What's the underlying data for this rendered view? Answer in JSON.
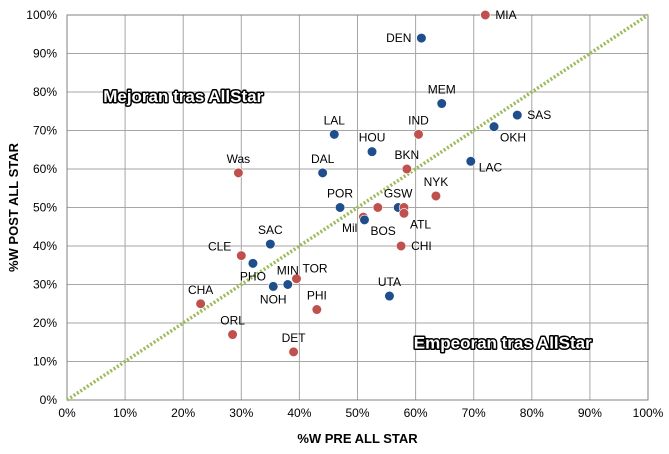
{
  "chart_data": {
    "type": "scatter",
    "xlabel": "%W PRE ALL STAR",
    "ylabel": "%W POST ALL STAR",
    "xlim": [
      0,
      100
    ],
    "ylim": [
      0,
      100
    ],
    "x_ticks": [
      "0%",
      "10%",
      "20%",
      "30%",
      "40%",
      "50%",
      "60%",
      "70%",
      "80%",
      "90%",
      "100%"
    ],
    "y_ticks": [
      "0%",
      "10%",
      "20%",
      "30%",
      "40%",
      "50%",
      "60%",
      "70%",
      "80%",
      "90%",
      "100%"
    ],
    "grid": true,
    "reference_line": {
      "style": "dotted",
      "from": [
        0,
        0
      ],
      "to": [
        100,
        100
      ],
      "color": "#9bbb59"
    },
    "annotations": [
      {
        "text": "Mejoran tras AllStar",
        "x": 20,
        "y": 79
      },
      {
        "text": "Empeoran tras AllStar",
        "x": 75,
        "y": 15
      }
    ],
    "colors": {
      "blue": "#1f4e8c",
      "red": "#c0504d"
    },
    "points": [
      {
        "label": "MIA",
        "x": 72,
        "y": 100,
        "color": "red",
        "label_side": "right"
      },
      {
        "label": "DEN",
        "x": 61,
        "y": 94,
        "color": "blue",
        "label_side": "left"
      },
      {
        "label": "MEM",
        "x": 64.5,
        "y": 77,
        "color": "blue",
        "label_side": "top"
      },
      {
        "label": "SAS",
        "x": 77.5,
        "y": 74,
        "color": "blue",
        "label_side": "right"
      },
      {
        "label": "OKH",
        "x": 73.5,
        "y": 71,
        "color": "blue",
        "label_side": "below-right"
      },
      {
        "label": "IND",
        "x": 60.5,
        "y": 69,
        "color": "red",
        "label_side": "top"
      },
      {
        "label": "LAL",
        "x": 46,
        "y": 69,
        "color": "blue",
        "label_side": "top"
      },
      {
        "label": "HOU",
        "x": 52.5,
        "y": 64.5,
        "color": "blue",
        "label_side": "top"
      },
      {
        "label": "BKN",
        "x": 58.5,
        "y": 60,
        "color": "red",
        "label_side": "top"
      },
      {
        "label": "LAC",
        "x": 69.5,
        "y": 62,
        "color": "blue",
        "label_side": "right-below"
      },
      {
        "label": "DAL",
        "x": 44,
        "y": 59,
        "color": "blue",
        "label_side": "top"
      },
      {
        "label": "Was",
        "x": 29.5,
        "y": 59,
        "color": "red",
        "label_side": "top"
      },
      {
        "label": "NYK",
        "x": 63.5,
        "y": 53,
        "color": "red",
        "label_side": "top"
      },
      {
        "label": "POR",
        "x": 47,
        "y": 50,
        "color": "blue",
        "label_side": "top"
      },
      {
        "label": "GSW",
        "x": 57,
        "y": 50,
        "color": "blue",
        "label_side": "top"
      },
      {
        "label": "",
        "x": 58,
        "y": 50,
        "color": "red",
        "label_side": "none"
      },
      {
        "label": "",
        "x": 53.5,
        "y": 50,
        "color": "red",
        "label_side": "none"
      },
      {
        "label": "Mil",
        "x": 51,
        "y": 47.5,
        "color": "red",
        "label_side": "below-left"
      },
      {
        "label": "BOS",
        "x": 51.2,
        "y": 46.8,
        "color": "blue",
        "label_side": "below-right"
      },
      {
        "label": "ATL",
        "x": 58,
        "y": 48.5,
        "color": "red",
        "label_side": "below-right"
      },
      {
        "label": "CHI",
        "x": 57.5,
        "y": 40,
        "color": "red",
        "label_side": "right"
      },
      {
        "label": "SAC",
        "x": 35,
        "y": 40.5,
        "color": "blue",
        "label_side": "top"
      },
      {
        "label": "CLE",
        "x": 30,
        "y": 37.5,
        "color": "red",
        "label_side": "top-left"
      },
      {
        "label": "PHO",
        "x": 32,
        "y": 35.5,
        "color": "blue",
        "label_side": "below"
      },
      {
        "label": "TOR",
        "x": 39.5,
        "y": 31.5,
        "color": "red",
        "label_side": "top-right"
      },
      {
        "label": "MIN",
        "x": 38,
        "y": 30,
        "color": "blue",
        "label_side": "top"
      },
      {
        "label": "NOH",
        "x": 35.5,
        "y": 29.5,
        "color": "blue",
        "label_side": "below"
      },
      {
        "label": "UTA",
        "x": 55.5,
        "y": 27,
        "color": "blue",
        "label_side": "top"
      },
      {
        "label": "PHI",
        "x": 43,
        "y": 23.5,
        "color": "red",
        "label_side": "top"
      },
      {
        "label": "CHA",
        "x": 23,
        "y": 25,
        "color": "red",
        "label_side": "top"
      },
      {
        "label": "ORL",
        "x": 28.5,
        "y": 17,
        "color": "red",
        "label_side": "top"
      },
      {
        "label": "DET",
        "x": 39,
        "y": 12.5,
        "color": "red",
        "label_side": "top"
      }
    ]
  }
}
